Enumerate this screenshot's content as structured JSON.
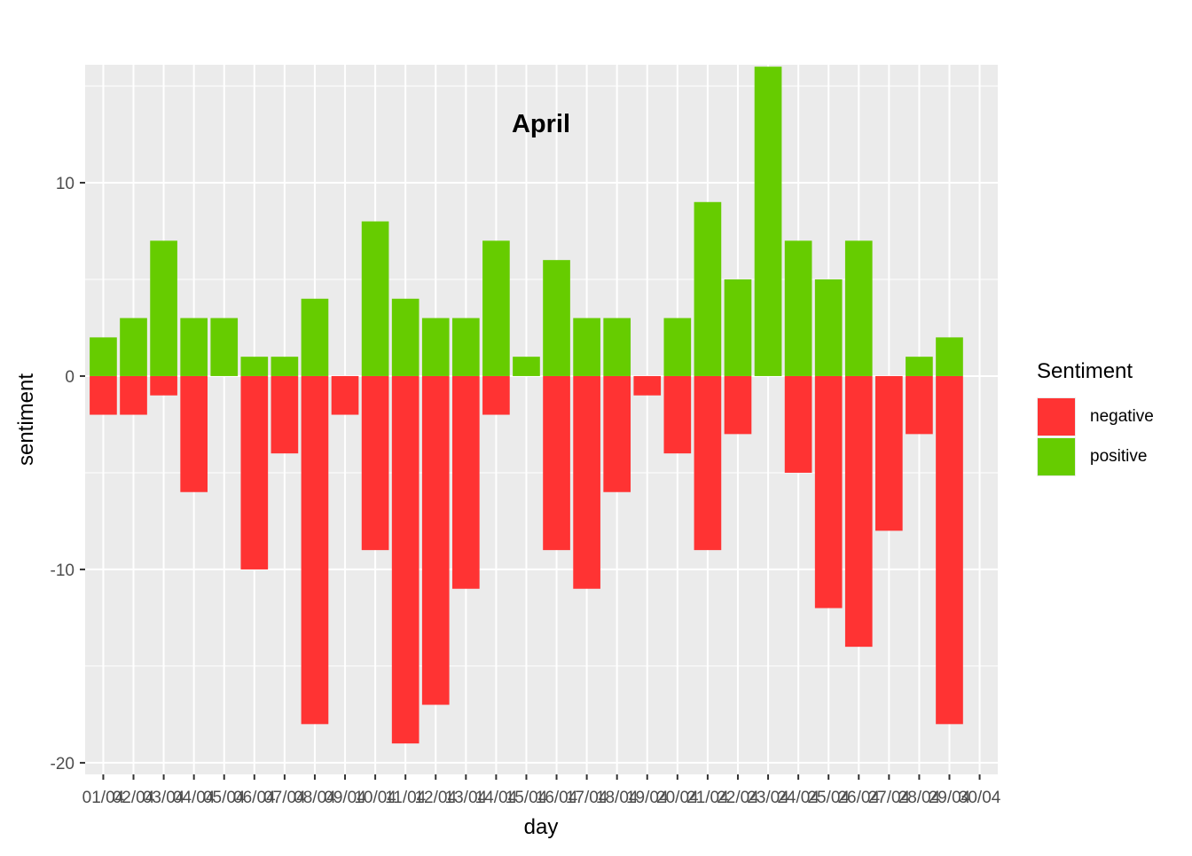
{
  "chart_data": {
    "type": "bar",
    "stacked": "diverging",
    "title": "April",
    "xlabel": "day",
    "ylabel": "sentiment",
    "ylim": [
      -20.6,
      16.1
    ],
    "yticks": [
      -20,
      -10,
      0,
      10
    ],
    "grid": true,
    "categories": [
      "01/04",
      "02/04",
      "03/04",
      "04/04",
      "05/04",
      "06/04",
      "07/04",
      "08/04",
      "09/04",
      "10/04",
      "11/04",
      "12/04",
      "13/04",
      "14/04",
      "15/04",
      "16/04",
      "17/04",
      "18/04",
      "19/04",
      "20/04",
      "21/04",
      "22/04",
      "23/04",
      "24/04",
      "25/04",
      "26/04",
      "27/04",
      "28/04",
      "29/04",
      "30/04"
    ],
    "series": [
      {
        "name": "negative",
        "color": "#ff3333",
        "values": [
          -2,
          -2,
          -1,
          -6,
          0,
          -10,
          -4,
          -18,
          -2,
          -9,
          -19,
          -17,
          -11,
          -2,
          0,
          -9,
          -11,
          -6,
          -1,
          -4,
          -9,
          -3,
          0,
          -5,
          -12,
          -14,
          -8,
          -3,
          -18,
          0
        ]
      },
      {
        "name": "positive",
        "color": "#66cc00",
        "values": [
          2,
          3,
          7,
          3,
          3,
          1,
          1,
          4,
          0,
          8,
          4,
          3,
          3,
          7,
          1,
          6,
          3,
          3,
          0,
          3,
          9,
          5,
          16,
          7,
          5,
          7,
          0,
          1,
          2,
          0
        ]
      }
    ],
    "legend": {
      "title": "Sentiment",
      "position": "right"
    }
  }
}
